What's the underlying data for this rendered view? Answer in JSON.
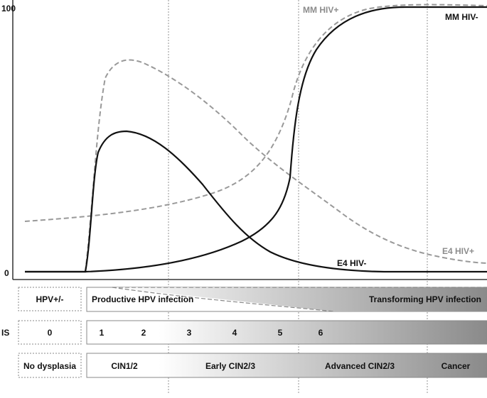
{
  "y_axis": {
    "top_label": "100",
    "bottom_label": "0"
  },
  "curve_labels": {
    "mm_hiv_pos": "MM HIV+",
    "mm_hiv_neg": "MM HIV-",
    "e4_hiv_neg": "E4 HIV-",
    "e4_hiv_pos": "E4 HIV+"
  },
  "rows": {
    "infection": {
      "left_label": "HPV+/-",
      "productive": "Productive HPV infection",
      "transforming": "Transforming HPV infection"
    },
    "is": {
      "row_label": "IS",
      "left_label": "0",
      "stages": [
        "1",
        "2",
        "3",
        "4",
        "5",
        "6"
      ]
    },
    "histology": {
      "left_label": "No dysplasia",
      "stages": [
        "CIN1/2",
        "Early CIN2/3",
        "Advanced CIN2/3",
        "Cancer"
      ]
    }
  },
  "colors": {
    "solid_curve": "#111111",
    "dashed_curve": "#999999",
    "label_grey": "#8c8c8c",
    "bar_dark": "#8a8a8a"
  }
}
